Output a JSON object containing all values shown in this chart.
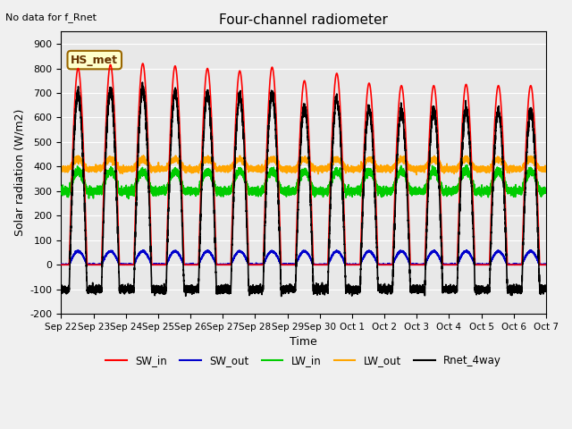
{
  "title": "Four-channel radiometer",
  "top_left_text": "No data for f_Rnet",
  "legend_box_label": "HS_met",
  "ylabel": "Solar radiation (W/m2)",
  "xlabel": "Time",
  "ylim": [
    -200,
    950
  ],
  "yticks": [
    -200,
    -100,
    0,
    100,
    200,
    300,
    400,
    500,
    600,
    700,
    800,
    900
  ],
  "xtick_labels": [
    "Sep 22",
    "Sep 23",
    "Sep 24",
    "Sep 25",
    "Sep 26",
    "Sep 27",
    "Sep 28",
    "Sep 29",
    "Sep 30",
    "Oct 1",
    "Oct 2",
    "Oct 3",
    "Oct 4",
    "Oct 5",
    "Oct 6",
    "Oct 7"
  ],
  "n_days": 15,
  "bg_color": "#e8e8e8",
  "grid_color": "#ffffff",
  "series": {
    "SW_in": {
      "color": "#ff0000",
      "lw": 1.2
    },
    "SW_out": {
      "color": "#0000cc",
      "lw": 1.2
    },
    "LW_in": {
      "color": "#00cc00",
      "lw": 1.2
    },
    "LW_out": {
      "color": "#ffa500",
      "lw": 1.2
    },
    "Rnet_4way": {
      "color": "#000000",
      "lw": 1.2
    }
  },
  "legend_box_color": "#ffffcc",
  "legend_box_edge": "#996600"
}
